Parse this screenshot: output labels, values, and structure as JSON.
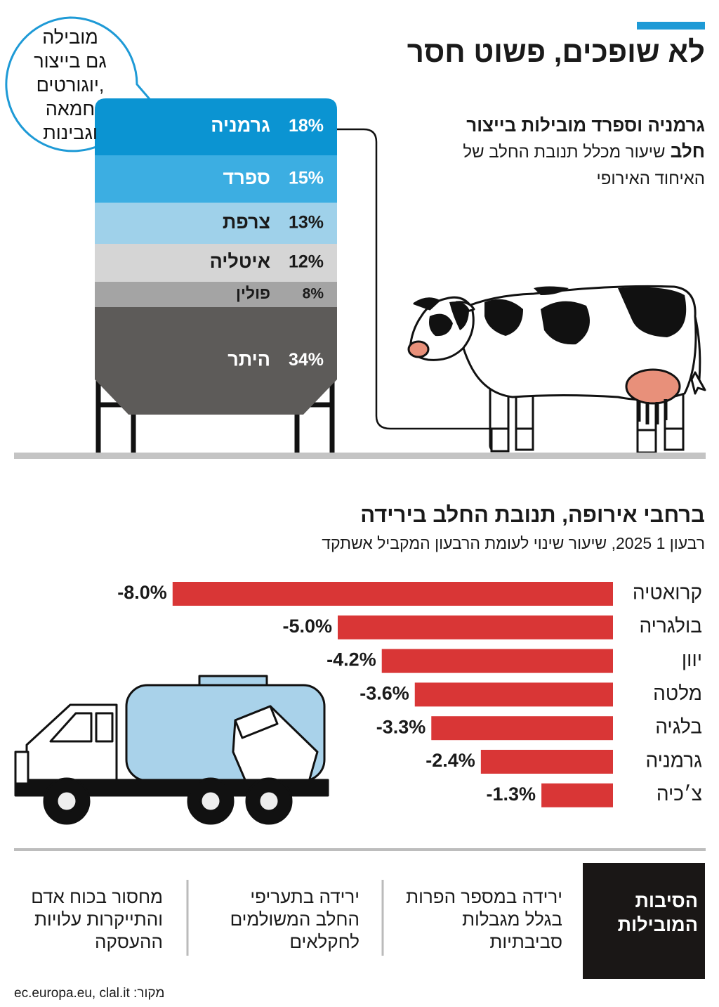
{
  "header": {
    "title": "לא שופכים, פשוט חסר"
  },
  "bubble": [
    "מובילה",
    "גם בייצור",
    "יוגורטים,",
    "חמאה",
    "וגבינות"
  ],
  "chart_data": [
    {
      "type": "silo",
      "title": "גרמניה וספרד מובילות בייצור חלב",
      "subtitle": "שיעור מכלל תנובת החלב של האיחוד האירופי",
      "categories": [
        "גרמניה",
        "ספרד",
        "צרפת",
        "איטליה",
        "פולין",
        "היתר"
      ],
      "values": [
        18,
        15,
        13,
        12,
        8,
        34
      ],
      "value_labels": [
        "18%",
        "15%",
        "13%",
        "12%",
        "8%",
        "34%"
      ],
      "colors": [
        "#0b94d2",
        "#3caee2",
        "#9fd1ea",
        "#d5d5d5",
        "#a4a4a4",
        "#5d5b59"
      ]
    },
    {
      "type": "bar",
      "orientation": "horizontal",
      "title": "ברחבי אירופה, תנובת החלב בירידה",
      "subtitle": "רבעון 1 2025, שיעור שינוי לעומת הרבעון המקביל אשתקד",
      "categories": [
        "קרואטיה",
        "בולגריה",
        "יוון",
        "מלטה",
        "בלגיה",
        "גרמניה",
        "צ׳כיה"
      ],
      "values": [
        -8.0,
        -5.0,
        -4.2,
        -3.6,
        -3.3,
        -2.4,
        -1.3
      ],
      "value_labels": [
        "-8.0%",
        "-5.0%",
        "-4.2%",
        "-3.6%",
        "-3.3%",
        "-2.4%",
        "-1.3%"
      ],
      "color": "#d93636"
    }
  ],
  "reasons": {
    "title": "הסיבות המובילות",
    "items": [
      "ירידה במספר הפרות בגלל מגבלות סביבתיות",
      "ירידה בתעריפי החלב המשולמים לחקלאים",
      "מחסור בכוח אדם והתייקרות עלויות ההעסקה"
    ]
  },
  "source": "מקור: ec.europa.eu, clal.it"
}
